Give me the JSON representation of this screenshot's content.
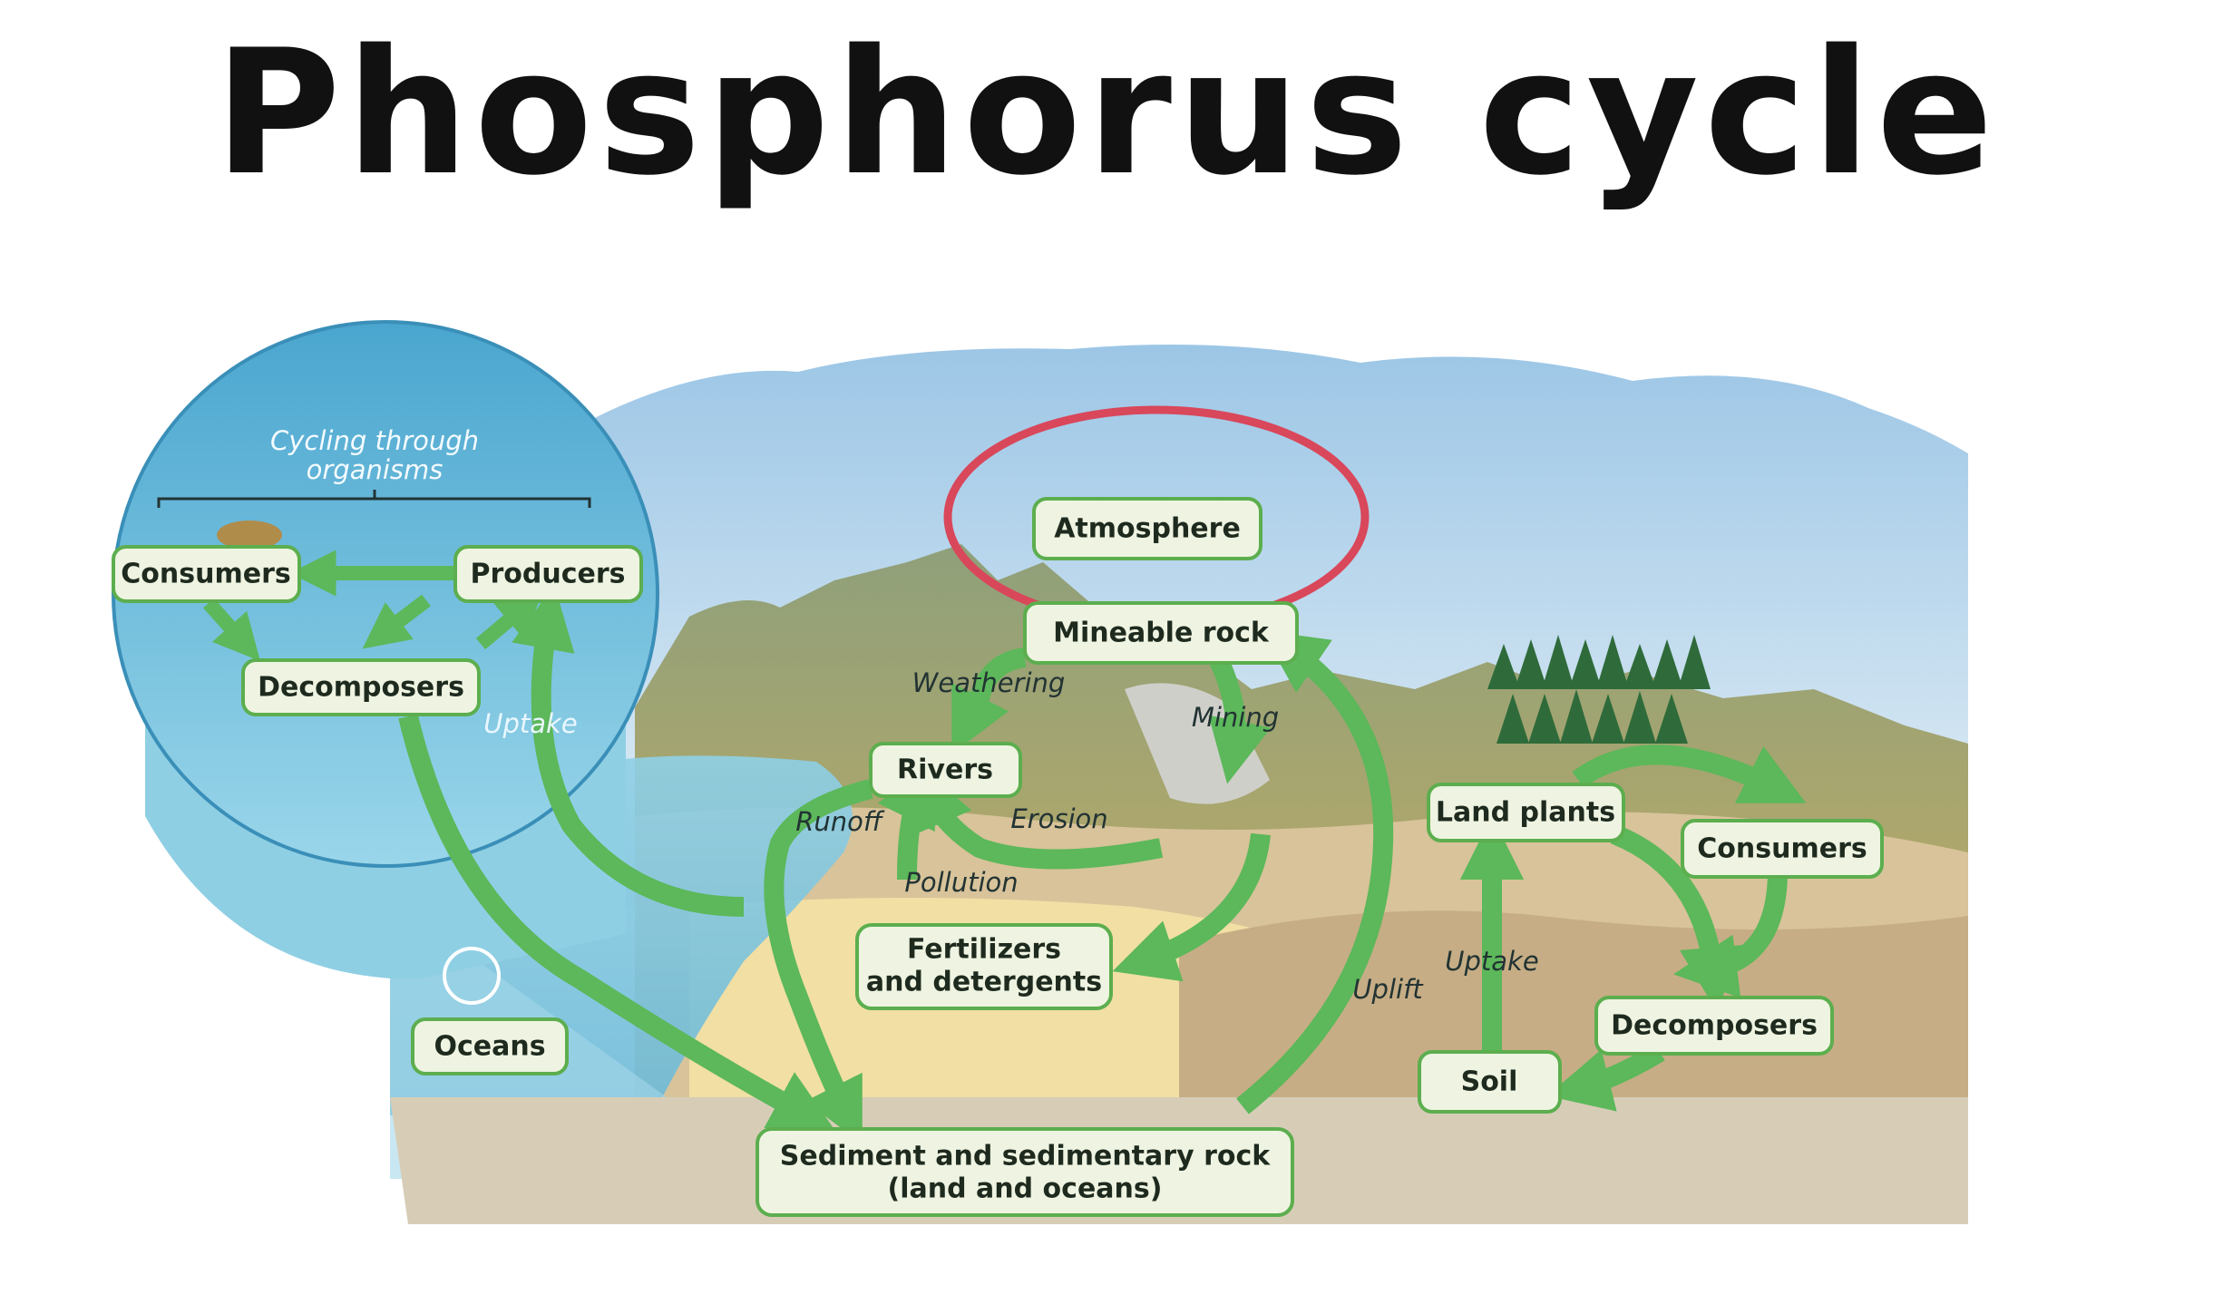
{
  "title": "Phosphorus cycle",
  "inset": {
    "header": "Cycling through organisms",
    "consumers": "Consumers",
    "producers": "Producers",
    "decomposers": "Decomposers",
    "uptake": "Uptake"
  },
  "nodes": {
    "atmosphere": "Atmosphere",
    "mineable_rock": "Mineable rock",
    "rivers": "Rivers",
    "fertilizers_line1": "Fertilizers",
    "fertilizers_line2": "and detergents",
    "oceans": "Oceans",
    "sediment_line1": "Sediment and sedimentary rock",
    "sediment_line2": "(land and oceans)",
    "land_plants": "Land plants",
    "consumers": "Consumers",
    "decomposers": "Decomposers",
    "soil": "Soil"
  },
  "labels": {
    "weathering": "Weathering",
    "mining": "Mining",
    "runoff": "Runoff",
    "erosion": "Erosion",
    "pollution": "Pollution",
    "uplift": "Uplift",
    "uptake": "Uptake"
  },
  "colors": {
    "arrow": "#5cb85a",
    "box_border": "#5cae4e",
    "box_fill": "#eef4e1",
    "highlight_circle": "#d9475b",
    "water": "#7cc4de",
    "soil": "#d9c6a0",
    "sky": "#cfe4f2"
  }
}
